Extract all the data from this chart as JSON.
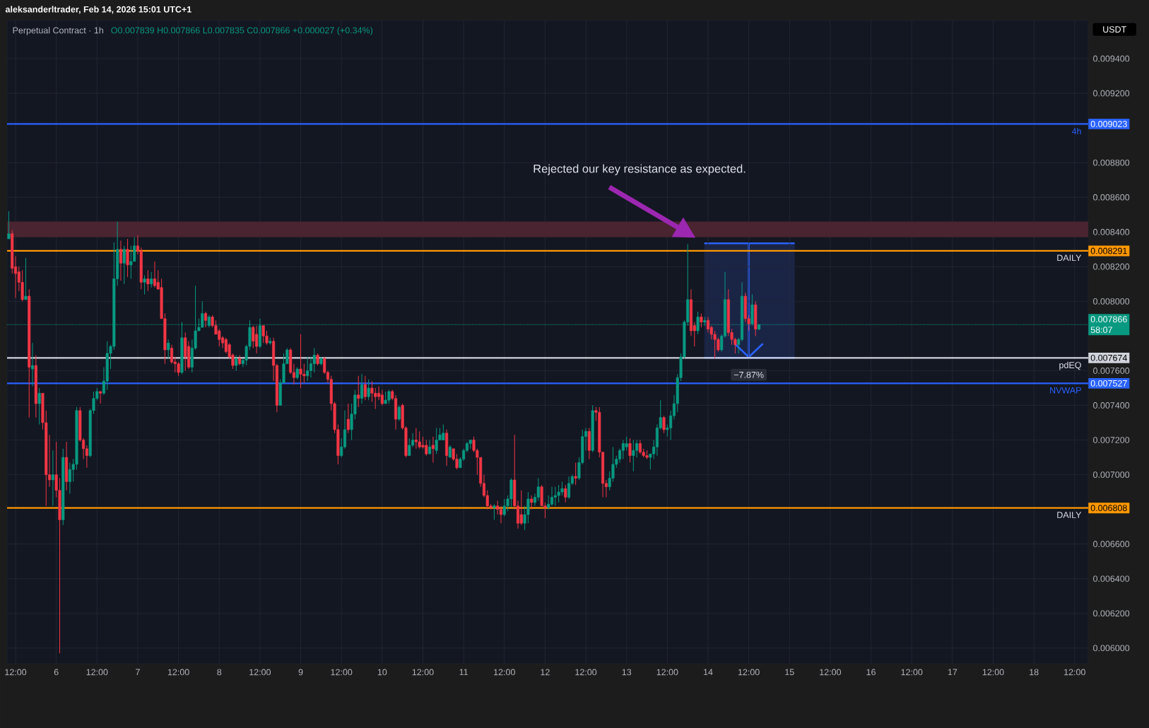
{
  "chart_data": {
    "type": "candlestick",
    "title": "Perpetual Contract · 1h",
    "subtitle": "O0.007839 H0.007866 L0.007835 C0.007866 +0.000027 (+0.34%)",
    "ylabel": "USDT",
    "grid": true,
    "xlim": [
      "2026-02-05T09:30",
      "2026-02-18T16:00"
    ],
    "ylim": [
      0.00591,
      0.00962
    ],
    "xticks": [
      {
        "value": "2026-02-05T12:00",
        "label": "12:00"
      },
      {
        "value": "2026-02-06T00:00",
        "label": "6"
      },
      {
        "value": "2026-02-06T12:00",
        "label": "12:00"
      },
      {
        "value": "2026-02-07T00:00",
        "label": "7"
      },
      {
        "value": "2026-02-07T12:00",
        "label": "12:00"
      },
      {
        "value": "2026-02-08T00:00",
        "label": "8"
      },
      {
        "value": "2026-02-08T12:00",
        "label": "12:00"
      },
      {
        "value": "2026-02-09T00:00",
        "label": "9"
      },
      {
        "value": "2026-02-09T12:00",
        "label": "12:00"
      },
      {
        "value": "2026-02-10T00:00",
        "label": "10"
      },
      {
        "value": "2026-02-10T12:00",
        "label": "12:00"
      },
      {
        "value": "2026-02-11T00:00",
        "label": "11"
      },
      {
        "value": "2026-02-11T12:00",
        "label": "12:00"
      },
      {
        "value": "2026-02-12T00:00",
        "label": "12"
      },
      {
        "value": "2026-02-12T12:00",
        "label": "12:00"
      },
      {
        "value": "2026-02-13T00:00",
        "label": "13"
      },
      {
        "value": "2026-02-13T12:00",
        "label": "12:00"
      },
      {
        "value": "2026-02-14T00:00",
        "label": "14"
      },
      {
        "value": "2026-02-14T12:00",
        "label": "12:00"
      },
      {
        "value": "2026-02-15T00:00",
        "label": "15"
      },
      {
        "value": "2026-02-15T12:00",
        "label": "12:00"
      },
      {
        "value": "2026-02-16T00:00",
        "label": "16"
      },
      {
        "value": "2026-02-16T12:00",
        "label": "12:00"
      },
      {
        "value": "2026-02-17T00:00",
        "label": "17"
      },
      {
        "value": "2026-02-17T12:00",
        "label": "12:00"
      },
      {
        "value": "2026-02-18T00:00",
        "label": "18"
      },
      {
        "value": "2026-02-18T12:00",
        "label": "12:00"
      }
    ],
    "yticks": [
      {
        "value": 0.0094,
        "label": "0.009400"
      },
      {
        "value": 0.0092,
        "label": "0.009200"
      },
      {
        "value": 0.0088,
        "label": "0.008800"
      },
      {
        "value": 0.0086,
        "label": "0.008600"
      },
      {
        "value": 0.0084,
        "label": "0.008400"
      },
      {
        "value": 0.0082,
        "label": "0.008200"
      },
      {
        "value": 0.008,
        "label": "0.008000"
      },
      {
        "value": 0.0076,
        "label": "0.007600"
      },
      {
        "value": 0.0074,
        "label": "0.007400"
      },
      {
        "value": 0.0072,
        "label": "0.007200"
      },
      {
        "value": 0.007,
        "label": "0.007000"
      },
      {
        "value": 0.0066,
        "label": "0.006600"
      },
      {
        "value": 0.0064,
        "label": "0.006400"
      },
      {
        "value": 0.0062,
        "label": "0.006200"
      },
      {
        "value": 0.006,
        "label": "0.006000"
      }
    ],
    "ref_lines": [
      {
        "axis": "y",
        "value": 0.009023,
        "label": "0.009023",
        "color": "#2962ff"
      },
      {
        "axis": "y",
        "value": 0.008291,
        "label": "0.008291",
        "color": "#ff9800"
      },
      {
        "axis": "y",
        "value": 0.007866,
        "label": "0.007866",
        "color": "#089981",
        "line_style": "dotted"
      },
      {
        "axis": "y",
        "value": 0.007674,
        "label": "0.007674",
        "color": "#d1d4dc"
      },
      {
        "axis": "y",
        "value": 0.007527,
        "label": "0.007527",
        "color": "#2962ff"
      },
      {
        "axis": "y",
        "value": 0.006808,
        "label": "0.006808",
        "color": "#ff9800"
      }
    ],
    "bands": [
      {
        "axis": "y",
        "from": 0.00837,
        "to": 0.00846,
        "color": "#4a2430"
      }
    ],
    "annotations": [
      "aleksanderltrader, Feb 14, 2026 15:01 UTC+1",
      "Rejected our key resistance as expected.",
      {
        "text": "−7.87%",
        "x": "2026-02-14T12:00",
        "y": 0.007674
      },
      "58:07",
      {
        "text": "4h",
        "x": "2026-02-18T16:00",
        "y": 0.009023
      },
      {
        "text": "DAILY",
        "x": "2026-02-18T16:00",
        "y": 0.008291
      },
      {
        "text": "pdEQ",
        "x": "2026-02-18T16:00",
        "y": 0.007674
      },
      {
        "text": "NVWAP",
        "x": "2026-02-18T16:00",
        "y": 0.007527
      },
      {
        "text": "DAILY",
        "x": "2026-02-18T16:00",
        "y": 0.006808
      }
    ],
    "x": [
      "2026-02-05T10:00",
      "2026-02-05T11:00",
      "2026-02-05T12:00",
      "2026-02-05T13:00",
      "2026-02-05T14:00",
      "2026-02-05T15:00",
      "2026-02-05T16:00",
      "2026-02-05T17:00",
      "2026-02-05T18:00",
      "2026-02-05T19:00",
      "2026-02-05T20:00",
      "2026-02-05T21:00",
      "2026-02-05T22:00",
      "2026-02-05T23:00",
      "2026-02-06T00:00",
      "2026-02-06T01:00",
      "2026-02-06T02:00",
      "2026-02-06T03:00",
      "2026-02-06T04:00",
      "2026-02-06T05:00",
      "2026-02-06T06:00",
      "2026-02-06T07:00",
      "2026-02-06T08:00",
      "2026-02-06T09:00",
      "2026-02-06T10:00",
      "2026-02-06T11:00",
      "2026-02-06T12:00",
      "2026-02-06T13:00",
      "2026-02-06T14:00",
      "2026-02-06T15:00",
      "2026-02-06T16:00",
      "2026-02-06T17:00",
      "2026-02-06T18:00",
      "2026-02-06T19:00",
      "2026-02-06T20:00",
      "2026-02-06T21:00",
      "2026-02-06T22:00",
      "2026-02-06T23:00",
      "2026-02-07T00:00",
      "2026-02-07T01:00",
      "2026-02-07T02:00",
      "2026-02-07T03:00",
      "2026-02-07T04:00",
      "2026-02-07T05:00",
      "2026-02-07T06:00",
      "2026-02-07T07:00",
      "2026-02-07T08:00",
      "2026-02-07T09:00",
      "2026-02-07T10:00",
      "2026-02-07T11:00",
      "2026-02-07T12:00",
      "2026-02-07T13:00",
      "2026-02-07T14:00",
      "2026-02-07T15:00",
      "2026-02-07T16:00",
      "2026-02-07T17:00",
      "2026-02-07T18:00",
      "2026-02-07T19:00",
      "2026-02-07T20:00",
      "2026-02-07T21:00",
      "2026-02-07T22:00",
      "2026-02-07T23:00",
      "2026-02-08T00:00",
      "2026-02-08T01:00",
      "2026-02-08T02:00",
      "2026-02-08T03:00",
      "2026-02-08T04:00",
      "2026-02-08T05:00",
      "2026-02-08T06:00",
      "2026-02-08T07:00",
      "2026-02-08T08:00",
      "2026-02-08T09:00",
      "2026-02-08T10:00",
      "2026-02-08T11:00",
      "2026-02-08T12:00",
      "2026-02-08T13:00",
      "2026-02-08T14:00",
      "2026-02-08T15:00",
      "2026-02-08T16:00",
      "2026-02-08T17:00",
      "2026-02-08T18:00",
      "2026-02-08T19:00",
      "2026-02-08T20:00",
      "2026-02-08T21:00",
      "2026-02-08T22:00",
      "2026-02-08T23:00",
      "2026-02-09T00:00",
      "2026-02-09T01:00",
      "2026-02-09T02:00",
      "2026-02-09T03:00",
      "2026-02-09T04:00",
      "2026-02-09T05:00",
      "2026-02-09T06:00",
      "2026-02-09T07:00",
      "2026-02-09T08:00",
      "2026-02-09T09:00",
      "2026-02-09T10:00",
      "2026-02-09T11:00",
      "2026-02-09T12:00",
      "2026-02-09T13:00",
      "2026-02-09T14:00",
      "2026-02-09T15:00",
      "2026-02-09T16:00",
      "2026-02-09T17:00",
      "2026-02-09T18:00",
      "2026-02-09T19:00",
      "2026-02-09T20:00",
      "2026-02-09T21:00",
      "2026-02-09T22:00",
      "2026-02-09T23:00",
      "2026-02-10T00:00",
      "2026-02-10T01:00",
      "2026-02-10T02:00",
      "2026-02-10T03:00",
      "2026-02-10T04:00",
      "2026-02-10T05:00",
      "2026-02-10T06:00",
      "2026-02-10T07:00",
      "2026-02-10T08:00",
      "2026-02-10T09:00",
      "2026-02-10T10:00",
      "2026-02-10T11:00",
      "2026-02-10T12:00",
      "2026-02-10T13:00",
      "2026-02-10T14:00",
      "2026-02-10T15:00",
      "2026-02-10T16:00",
      "2026-02-10T17:00",
      "2026-02-10T18:00",
      "2026-02-10T19:00",
      "2026-02-10T20:00",
      "2026-02-10T21:00",
      "2026-02-10T22:00",
      "2026-02-10T23:00",
      "2026-02-11T00:00",
      "2026-02-11T01:00",
      "2026-02-11T02:00",
      "2026-02-11T03:00",
      "2026-02-11T04:00",
      "2026-02-11T05:00",
      "2026-02-11T06:00",
      "2026-02-11T07:00",
      "2026-02-11T08:00",
      "2026-02-11T09:00",
      "2026-02-11T10:00",
      "2026-02-11T11:00",
      "2026-02-11T12:00",
      "2026-02-11T13:00",
      "2026-02-11T14:00",
      "2026-02-11T15:00",
      "2026-02-11T16:00",
      "2026-02-11T17:00",
      "2026-02-11T18:00",
      "2026-02-11T19:00",
      "2026-02-11T20:00",
      "2026-02-11T21:00",
      "2026-02-11T22:00",
      "2026-02-11T23:00",
      "2026-02-12T00:00",
      "2026-02-12T01:00",
      "2026-02-12T02:00",
      "2026-02-12T03:00",
      "2026-02-12T04:00",
      "2026-02-12T05:00",
      "2026-02-12T06:00",
      "2026-02-12T07:00",
      "2026-02-12T08:00",
      "2026-02-12T09:00",
      "2026-02-12T10:00",
      "2026-02-12T11:00",
      "2026-02-12T12:00",
      "2026-02-12T13:00",
      "2026-02-12T14:00",
      "2026-02-12T15:00",
      "2026-02-12T16:00",
      "2026-02-12T17:00",
      "2026-02-12T18:00",
      "2026-02-12T19:00",
      "2026-02-12T20:00",
      "2026-02-12T21:00",
      "2026-02-12T22:00",
      "2026-02-12T23:00",
      "2026-02-13T00:00",
      "2026-02-13T01:00",
      "2026-02-13T02:00",
      "2026-02-13T03:00",
      "2026-02-13T04:00",
      "2026-02-13T05:00",
      "2026-02-13T06:00",
      "2026-02-13T07:00",
      "2026-02-13T08:00",
      "2026-02-13T09:00",
      "2026-02-13T10:00",
      "2026-02-13T11:00",
      "2026-02-13T12:00",
      "2026-02-13T13:00",
      "2026-02-13T14:00",
      "2026-02-13T15:00",
      "2026-02-13T16:00",
      "2026-02-13T17:00",
      "2026-02-13T18:00",
      "2026-02-13T19:00",
      "2026-02-13T20:00",
      "2026-02-13T21:00",
      "2026-02-13T22:00",
      "2026-02-13T23:00",
      "2026-02-14T00:00",
      "2026-02-14T01:00",
      "2026-02-14T02:00",
      "2026-02-14T03:00",
      "2026-02-14T04:00",
      "2026-02-14T05:00",
      "2026-02-14T06:00",
      "2026-02-14T07:00",
      "2026-02-14T08:00",
      "2026-02-14T09:00",
      "2026-02-14T10:00",
      "2026-02-14T11:00",
      "2026-02-14T12:00",
      "2026-02-14T13:00",
      "2026-02-14T14:00",
      "2026-02-14T15:00"
    ],
    "ohlc": [
      [
        0.00836,
        0.00852,
        0.00836,
        0.00839
      ],
      [
        0.00839,
        0.00841,
        0.00816,
        0.00819
      ],
      [
        0.0082,
        0.00826,
        0.00802,
        0.00816
      ],
      [
        0.00817,
        0.0082,
        0.00806,
        0.00811
      ],
      [
        0.00811,
        0.00818,
        0.008,
        0.00801
      ],
      [
        0.00801,
        0.00825,
        0.00801,
        0.00803
      ],
      [
        0.00803,
        0.00807,
        0.00733,
        0.00762
      ],
      [
        0.00761,
        0.00776,
        0.00751,
        0.00763
      ],
      [
        0.00763,
        0.00769,
        0.00733,
        0.00741
      ],
      [
        0.00741,
        0.0075,
        0.00729,
        0.00747
      ],
      [
        0.00747,
        0.00747,
        0.00726,
        0.0073
      ],
      [
        0.0073,
        0.00737,
        0.00682,
        0.007
      ],
      [
        0.007,
        0.00723,
        0.00693,
        0.00697
      ],
      [
        0.00697,
        0.00714,
        0.00682,
        0.007
      ],
      [
        0.007,
        0.00719,
        0.00687,
        0.00691
      ],
      [
        0.00691,
        0.00698,
        0.00597,
        0.00674
      ],
      [
        0.00674,
        0.00715,
        0.00671,
        0.0071
      ],
      [
        0.0071,
        0.00719,
        0.00691,
        0.00696
      ],
      [
        0.00696,
        0.00707,
        0.00689,
        0.00703
      ],
      [
        0.00703,
        0.00709,
        0.00696,
        0.00706
      ],
      [
        0.00706,
        0.00739,
        0.00703,
        0.00737
      ],
      [
        0.00737,
        0.00739,
        0.00719,
        0.0072
      ],
      [
        0.0072,
        0.00721,
        0.00709,
        0.00715
      ],
      [
        0.00715,
        0.00717,
        0.00704,
        0.00711
      ],
      [
        0.00711,
        0.00738,
        0.0071,
        0.00737
      ],
      [
        0.00737,
        0.00748,
        0.00735,
        0.00744
      ],
      [
        0.00744,
        0.0075,
        0.00743,
        0.00748
      ],
      [
        0.00748,
        0.00748,
        0.00741,
        0.00747
      ],
      [
        0.00747,
        0.00762,
        0.00746,
        0.00754
      ],
      [
        0.00754,
        0.00777,
        0.00749,
        0.0077
      ],
      [
        0.0077,
        0.00775,
        0.00761,
        0.00774
      ],
      [
        0.00774,
        0.00834,
        0.00772,
        0.00813
      ],
      [
        0.00813,
        0.00846,
        0.00809,
        0.0083
      ],
      [
        0.0083,
        0.00835,
        0.00812,
        0.00822
      ],
      [
        0.00822,
        0.00832,
        0.0081,
        0.0083
      ],
      [
        0.0083,
        0.00836,
        0.00814,
        0.00821
      ],
      [
        0.00821,
        0.00832,
        0.00813,
        0.00823
      ],
      [
        0.00823,
        0.00837,
        0.00823,
        0.00832
      ],
      [
        0.00832,
        0.00838,
        0.00827,
        0.00829
      ],
      [
        0.00829,
        0.00831,
        0.00807,
        0.00811
      ],
      [
        0.00811,
        0.00815,
        0.00804,
        0.00813
      ],
      [
        0.00813,
        0.00818,
        0.00806,
        0.0081
      ],
      [
        0.0081,
        0.00817,
        0.00808,
        0.00813
      ],
      [
        0.00813,
        0.00823,
        0.00808,
        0.00809
      ],
      [
        0.00811,
        0.00818,
        0.00807,
        0.00807
      ],
      [
        0.00808,
        0.00813,
        0.0079,
        0.0079
      ],
      [
        0.0079,
        0.00793,
        0.00764,
        0.00772
      ],
      [
        0.00772,
        0.00778,
        0.00767,
        0.00776
      ],
      [
        0.00773,
        0.00775,
        0.00764,
        0.00765
      ],
      [
        0.00765,
        0.00768,
        0.00759,
        0.00764
      ],
      [
        0.00764,
        0.00765,
        0.00757,
        0.00759
      ],
      [
        0.00759,
        0.00788,
        0.00758,
        0.00779
      ],
      [
        0.00779,
        0.00782,
        0.0076,
        0.00768
      ],
      [
        0.00774,
        0.00777,
        0.00761,
        0.00762
      ],
      [
        0.00762,
        0.00778,
        0.00759,
        0.00773
      ],
      [
        0.00773,
        0.00809,
        0.00772,
        0.00783
      ],
      [
        0.00783,
        0.0079,
        0.00783,
        0.00785
      ],
      [
        0.00785,
        0.008,
        0.00785,
        0.00793
      ],
      [
        0.00793,
        0.00794,
        0.00785,
        0.00789
      ],
      [
        0.00786,
        0.00792,
        0.00785,
        0.00791
      ],
      [
        0.00791,
        0.00792,
        0.00785,
        0.00786
      ],
      [
        0.00786,
        0.00789,
        0.00781,
        0.00781
      ],
      [
        0.00783,
        0.00784,
        0.00774,
        0.00778
      ],
      [
        0.00779,
        0.0078,
        0.00773,
        0.00776
      ],
      [
        0.00778,
        0.00779,
        0.0077,
        0.00771
      ],
      [
        0.00775,
        0.00776,
        0.00767,
        0.00768
      ],
      [
        0.00769,
        0.0077,
        0.00761,
        0.00763
      ],
      [
        0.00763,
        0.00769,
        0.0076,
        0.00767
      ],
      [
        0.00767,
        0.00769,
        0.00763,
        0.00764
      ],
      [
        0.00764,
        0.00767,
        0.00762,
        0.00766
      ],
      [
        0.00766,
        0.00775,
        0.00763,
        0.00774
      ],
      [
        0.00774,
        0.00789,
        0.00772,
        0.00785
      ],
      [
        0.00785,
        0.00786,
        0.00773,
        0.00777
      ],
      [
        0.00781,
        0.00786,
        0.0077,
        0.00774
      ],
      [
        0.00774,
        0.0079,
        0.00773,
        0.00786
      ],
      [
        0.00786,
        0.00786,
        0.00776,
        0.0078
      ],
      [
        0.0078,
        0.00783,
        0.00775,
        0.00776
      ],
      [
        0.00776,
        0.00779,
        0.00775,
        0.00777
      ],
      [
        0.00777,
        0.00779,
        0.00754,
        0.00763
      ],
      [
        0.00763,
        0.00764,
        0.00736,
        0.0074
      ],
      [
        0.0074,
        0.00755,
        0.0074,
        0.00753
      ],
      [
        0.00753,
        0.0077,
        0.00753,
        0.00764
      ],
      [
        0.00764,
        0.00773,
        0.00764,
        0.00772
      ],
      [
        0.00772,
        0.00773,
        0.00758,
        0.00759
      ],
      [
        0.00759,
        0.00764,
        0.00752,
        0.00756
      ],
      [
        0.00756,
        0.00762,
        0.00755,
        0.00761
      ],
      [
        0.00761,
        0.00781,
        0.0075,
        0.00758
      ],
      [
        0.00758,
        0.00764,
        0.00753,
        0.00757
      ],
      [
        0.00757,
        0.00768,
        0.00754,
        0.0076
      ],
      [
        0.0076,
        0.00768,
        0.00756,
        0.00764
      ],
      [
        0.00764,
        0.00773,
        0.00759,
        0.00769
      ],
      [
        0.00769,
        0.0077,
        0.00763,
        0.00764
      ],
      [
        0.00764,
        0.00768,
        0.00763,
        0.00767
      ],
      [
        0.00767,
        0.00768,
        0.00758,
        0.00759
      ],
      [
        0.00759,
        0.0076,
        0.00753,
        0.00755
      ],
      [
        0.00755,
        0.00757,
        0.00737,
        0.00741
      ],
      [
        0.00741,
        0.00742,
        0.00724,
        0.00726
      ],
      [
        0.00726,
        0.00729,
        0.00706,
        0.00711
      ],
      [
        0.00711,
        0.00721,
        0.0071,
        0.00716
      ],
      [
        0.00716,
        0.00737,
        0.00715,
        0.00726
      ],
      [
        0.00732,
        0.00741,
        0.00724,
        0.00726
      ],
      [
        0.00726,
        0.00741,
        0.0072,
        0.00735
      ],
      [
        0.00735,
        0.00749,
        0.00732,
        0.00746
      ],
      [
        0.00746,
        0.00757,
        0.00739,
        0.00744
      ],
      [
        0.00744,
        0.00758,
        0.00741,
        0.00752
      ],
      [
        0.00752,
        0.00757,
        0.00743,
        0.00745
      ],
      [
        0.00745,
        0.00755,
        0.00743,
        0.0075
      ],
      [
        0.0075,
        0.00754,
        0.00742,
        0.00747
      ],
      [
        0.00747,
        0.0075,
        0.00738,
        0.00745
      ],
      [
        0.00747,
        0.00751,
        0.00743,
        0.00745
      ],
      [
        0.00746,
        0.00749,
        0.0074,
        0.00741
      ],
      [
        0.00741,
        0.00748,
        0.00741,
        0.00743
      ],
      [
        0.00743,
        0.00749,
        0.00741,
        0.00748
      ],
      [
        0.00748,
        0.00749,
        0.00743,
        0.00744
      ],
      [
        0.00744,
        0.00746,
        0.00726,
        0.00732
      ],
      [
        0.00732,
        0.0074,
        0.00731,
        0.00739
      ],
      [
        0.0074,
        0.00741,
        0.00726,
        0.00727
      ],
      [
        0.00727,
        0.00728,
        0.0071,
        0.00711
      ],
      [
        0.00711,
        0.00721,
        0.00711,
        0.00717
      ],
      [
        0.00717,
        0.00724,
        0.00716,
        0.0072
      ],
      [
        0.0072,
        0.00727,
        0.00715,
        0.00719
      ],
      [
        0.00719,
        0.00725,
        0.00715,
        0.00716
      ],
      [
        0.00717,
        0.00722,
        0.00715,
        0.00716
      ],
      [
        0.00717,
        0.0072,
        0.00711,
        0.00712
      ],
      [
        0.00712,
        0.0072,
        0.00712,
        0.00716
      ],
      [
        0.00717,
        0.00722,
        0.00707,
        0.00715
      ],
      [
        0.00714,
        0.00727,
        0.00712,
        0.0072
      ],
      [
        0.0072,
        0.00727,
        0.0072,
        0.00723
      ],
      [
        0.0072,
        0.00729,
        0.0072,
        0.00724
      ],
      [
        0.00724,
        0.00726,
        0.00705,
        0.00711
      ],
      [
        0.0071,
        0.00717,
        0.0071,
        0.00716
      ],
      [
        0.00715,
        0.00715,
        0.00708,
        0.00709
      ],
      [
        0.00709,
        0.00712,
        0.00703,
        0.00704
      ],
      [
        0.00704,
        0.0071,
        0.00704,
        0.00709
      ],
      [
        0.00709,
        0.00715,
        0.00708,
        0.00714
      ],
      [
        0.00714,
        0.00719,
        0.00713,
        0.00718
      ],
      [
        0.00718,
        0.0072,
        0.00715,
        0.0072
      ],
      [
        0.0072,
        0.00722,
        0.00713,
        0.00714
      ],
      [
        0.00714,
        0.00715,
        0.007,
        0.0071
      ],
      [
        0.0071,
        0.0071,
        0.00693,
        0.00695
      ],
      [
        0.00695,
        0.007,
        0.00687,
        0.00688
      ],
      [
        0.00688,
        0.00691,
        0.0068,
        0.00682
      ],
      [
        0.00682,
        0.00683,
        0.0068,
        0.00681
      ],
      [
        0.00681,
        0.00683,
        0.00674,
        0.00682
      ],
      [
        0.00682,
        0.00685,
        0.00677,
        0.0068
      ],
      [
        0.0068,
        0.00682,
        0.00672,
        0.00677
      ],
      [
        0.00677,
        0.00686,
        0.00676,
        0.00682
      ],
      [
        0.00682,
        0.00688,
        0.00679,
        0.00686
      ],
      [
        0.00686,
        0.00698,
        0.00681,
        0.00697
      ],
      [
        0.00697,
        0.00723,
        0.0068,
        0.00682
      ],
      [
        0.00682,
        0.00685,
        0.00669,
        0.00672
      ],
      [
        0.00677,
        0.00691,
        0.00671,
        0.00672
      ],
      [
        0.00672,
        0.00682,
        0.00668,
        0.00677
      ],
      [
        0.00677,
        0.0069,
        0.00672,
        0.00686
      ],
      [
        0.00686,
        0.00688,
        0.0068,
        0.00684
      ],
      [
        0.00684,
        0.00689,
        0.00682,
        0.00687
      ],
      [
        0.00687,
        0.00698,
        0.00685,
        0.00693
      ],
      [
        0.00693,
        0.00694,
        0.00682,
        0.00682
      ],
      [
        0.00682,
        0.00684,
        0.00675,
        0.00681
      ],
      [
        0.00681,
        0.00688,
        0.0068,
        0.00683
      ],
      [
        0.00683,
        0.00693,
        0.00682,
        0.00687
      ],
      [
        0.00687,
        0.00693,
        0.00682,
        0.00688
      ],
      [
        0.00688,
        0.00694,
        0.00684,
        0.0069
      ],
      [
        0.0069,
        0.00696,
        0.00688,
        0.00692
      ],
      [
        0.00692,
        0.00694,
        0.00684,
        0.00687
      ],
      [
        0.00687,
        0.00699,
        0.00686,
        0.00695
      ],
      [
        0.00695,
        0.007,
        0.00694,
        0.00699
      ],
      [
        0.00699,
        0.00707,
        0.00694,
        0.00698
      ],
      [
        0.00698,
        0.0071,
        0.00697,
        0.00707
      ],
      [
        0.00707,
        0.00726,
        0.00706,
        0.00722
      ],
      [
        0.00722,
        0.00727,
        0.00714,
        0.00725
      ],
      [
        0.00725,
        0.00727,
        0.00709,
        0.00714
      ],
      [
        0.00714,
        0.0074,
        0.00713,
        0.00737
      ],
      [
        0.00737,
        0.00739,
        0.00731,
        0.00736
      ],
      [
        0.00736,
        0.00739,
        0.0071,
        0.00713
      ],
      [
        0.00713,
        0.00713,
        0.00687,
        0.00695
      ],
      [
        0.00695,
        0.00697,
        0.00687,
        0.00693
      ],
      [
        0.00693,
        0.00702,
        0.00691,
        0.00698
      ],
      [
        0.00698,
        0.00716,
        0.00696,
        0.00706
      ],
      [
        0.00706,
        0.00711,
        0.00704,
        0.00709
      ],
      [
        0.00709,
        0.00715,
        0.00707,
        0.00714
      ],
      [
        0.00714,
        0.0072,
        0.00709,
        0.00718
      ],
      [
        0.00716,
        0.00722,
        0.00714,
        0.00718
      ],
      [
        0.00718,
        0.00721,
        0.00707,
        0.00711
      ],
      [
        0.00711,
        0.0072,
        0.00702,
        0.00714
      ],
      [
        0.00714,
        0.0072,
        0.0071,
        0.00718
      ],
      [
        0.00718,
        0.0072,
        0.00712,
        0.00713
      ],
      [
        0.00713,
        0.00715,
        0.0071,
        0.00711
      ],
      [
        0.00711,
        0.00714,
        0.00709,
        0.0071
      ],
      [
        0.0071,
        0.00712,
        0.00703,
        0.00712
      ],
      [
        0.00712,
        0.0072,
        0.00709,
        0.00716
      ],
      [
        0.00716,
        0.00729,
        0.00711,
        0.00727
      ],
      [
        0.00727,
        0.00743,
        0.00726,
        0.00733
      ],
      [
        0.00733,
        0.00734,
        0.00724,
        0.00726
      ],
      [
        0.00726,
        0.00729,
        0.00722,
        0.00727
      ],
      [
        0.00727,
        0.00737,
        0.0072,
        0.00734
      ],
      [
        0.00734,
        0.00746,
        0.00732,
        0.00741
      ],
      [
        0.00741,
        0.00758,
        0.00736,
        0.00756
      ],
      [
        0.00756,
        0.0077,
        0.00754,
        0.00768
      ],
      [
        0.00768,
        0.00789,
        0.00767,
        0.00788
      ],
      [
        0.00788,
        0.00833,
        0.00786,
        0.00801
      ],
      [
        0.00801,
        0.00807,
        0.0078,
        0.00783
      ],
      [
        0.00786,
        0.00788,
        0.00774,
        0.00783
      ],
      [
        0.00783,
        0.00794,
        0.00781,
        0.00791
      ],
      [
        0.00791,
        0.00793,
        0.00785,
        0.00788
      ],
      [
        0.00788,
        0.00791,
        0.00786,
        0.00789
      ],
      [
        0.00789,
        0.00791,
        0.00782,
        0.00784
      ],
      [
        0.00785,
        0.00786,
        0.00778,
        0.00781
      ],
      [
        0.00781,
        0.00783,
        0.00767,
        0.00778
      ],
      [
        0.00778,
        0.00779,
        0.00771,
        0.00772
      ],
      [
        0.00772,
        0.00781,
        0.00771,
        0.0078
      ],
      [
        0.0078,
        0.00817,
        0.00779,
        0.00801
      ],
      [
        0.00801,
        0.00807,
        0.0078,
        0.00782
      ],
      [
        0.00782,
        0.00784,
        0.00775,
        0.00778
      ],
      [
        0.00778,
        0.00779,
        0.0077,
        0.00775
      ],
      [
        0.00775,
        0.00779,
        0.0077,
        0.00778
      ],
      [
        0.00778,
        0.00811,
        0.00777,
        0.00803
      ],
      [
        0.00803,
        0.00805,
        0.00788,
        0.0079
      ],
      [
        0.0079,
        0.00792,
        0.00783,
        0.00787
      ],
      [
        0.00787,
        0.00804,
        0.00786,
        0.00798
      ],
      [
        0.00798,
        0.008,
        0.0078,
        0.00784
      ],
      [
        0.007839,
        0.007866,
        0.007835,
        0.007866
      ]
    ]
  }
}
